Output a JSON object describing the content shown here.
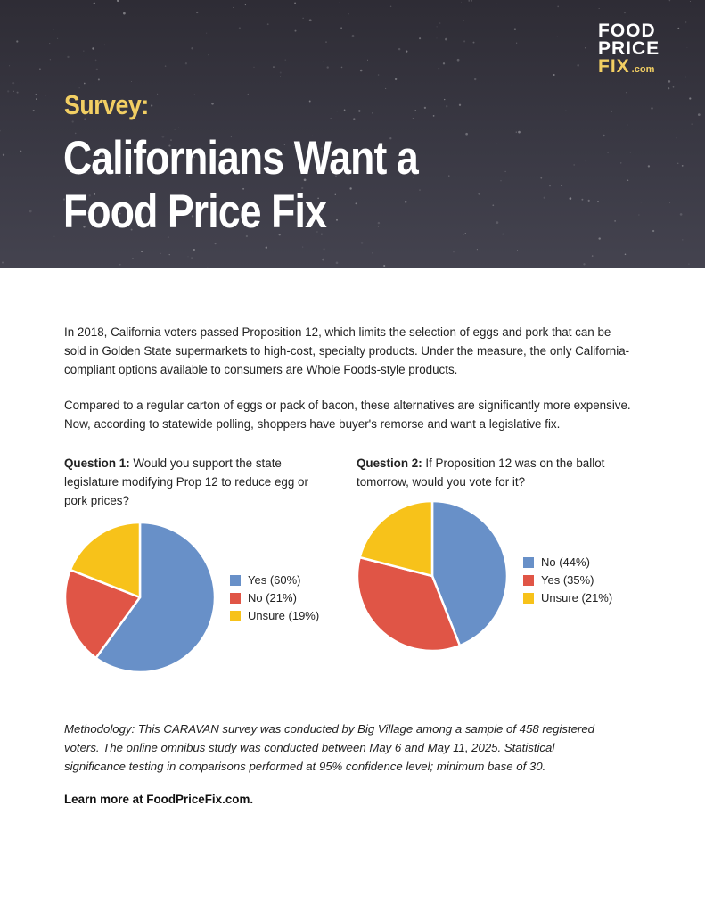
{
  "header": {
    "kicker": "Survey:",
    "headline": "Californians Want a Food Price Fix"
  },
  "logo": {
    "line1": "FOOD",
    "line2": "PRICE",
    "line3": "FIX",
    "suffix": ".com"
  },
  "intro": {
    "paragraph1": "In 2018, California voters passed Proposition 12, which limits the selection of eggs and pork that can be sold in Golden State supermarkets to high-cost, specialty products. Under the measure, the only California-compliant options available to consumers are Whole Foods-style products.",
    "paragraph2": "Compared to a regular carton of eggs or pack of bacon, these alternatives are significantly more expensive. Now, according to statewide polling, shoppers have buyer's remorse and want a legislative fix."
  },
  "questions": [
    {
      "label": "Question 1:",
      "text": "Would you support the state legislature modifying Prop 12 to reduce egg or pork prices?"
    },
    {
      "label": "Question 2:",
      "text": "If Proposition 12 was on the ballot tomorrow, would you vote for it?"
    }
  ],
  "chart_data": [
    {
      "type": "pie",
      "title": "Would you support the state legislature modifying Prop 12 to reduce egg or pork prices?",
      "legend_position": "right",
      "slices": [
        {
          "label": "Yes (60%)",
          "value": 60,
          "color": "#6890c8"
        },
        {
          "label": "No (21%)",
          "value": 21,
          "color": "#e05546"
        },
        {
          "label": "Unsure (19%)",
          "value": 19,
          "color": "#f7c21a"
        }
      ]
    },
    {
      "type": "pie",
      "title": "If Proposition 12 was on the ballot tomorrow, would you vote for it?",
      "legend_position": "right",
      "slices": [
        {
          "label": "No (44%)",
          "value": 44,
          "color": "#6890c8"
        },
        {
          "label": "Yes (35%)",
          "value": 35,
          "color": "#e05546"
        },
        {
          "label": "Unsure (21%)",
          "value": 21,
          "color": "#f7c21a"
        }
      ]
    }
  ],
  "methodology": "Methodology: This CARAVAN survey was conducted by Big Village among a sample of 458 registered voters. The online omnibus study was conducted between May 6 and May 11, 2025. Statistical significance testing in comparisons performed at 95% confidence level; minimum base of 30.",
  "footer": {
    "learn_more": "Learn more at FoodPriceFix.com."
  }
}
